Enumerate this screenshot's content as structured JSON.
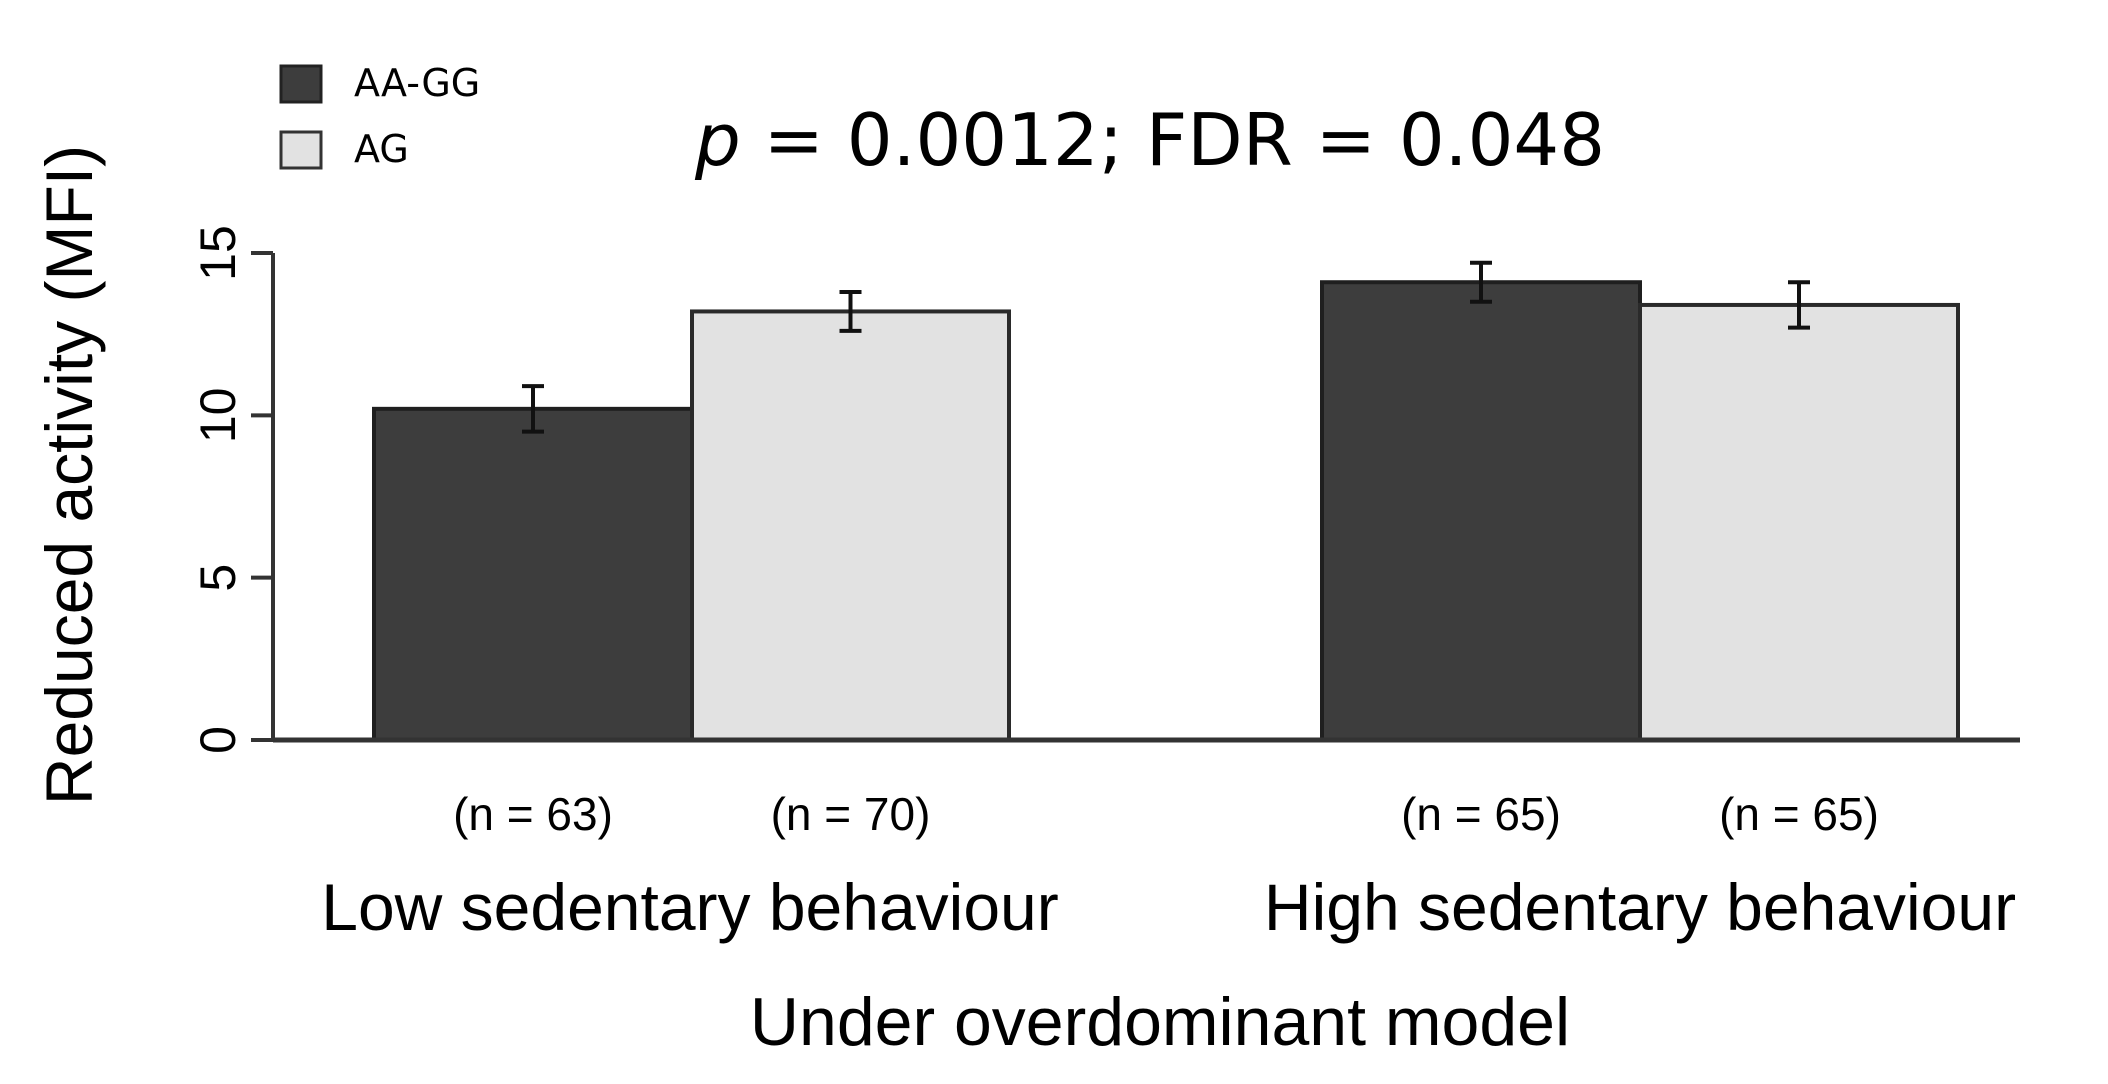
{
  "chart_data": {
    "type": "bar",
    "annotation": {
      "p_label": "p",
      "p_value": " = 0.0012; ",
      "fdr": "FDR = 0.048"
    },
    "xlabel": "Under overdominant model",
    "ylabel": "Reduced activity (MFI)",
    "ylim": [
      0,
      15
    ],
    "yticks": [
      "0",
      "5",
      "10",
      "15"
    ],
    "legend_position": "top-left",
    "categories": [
      "Low sedentary behaviour",
      "High sedentary behaviour"
    ],
    "series": [
      {
        "name": "AA-GG",
        "color": "#3d3d3d",
        "values": [
          10.2,
          14.1
        ],
        "errors": [
          0.7,
          0.6
        ],
        "n_labels": [
          "(n = 63)",
          "(n = 65)"
        ]
      },
      {
        "name": "AG",
        "color": "#e2e2e2",
        "values": [
          13.2,
          13.4
        ],
        "errors": [
          0.6,
          0.7
        ],
        "n_labels": [
          "(n = 70)",
          "(n = 65)"
        ]
      }
    ]
  }
}
